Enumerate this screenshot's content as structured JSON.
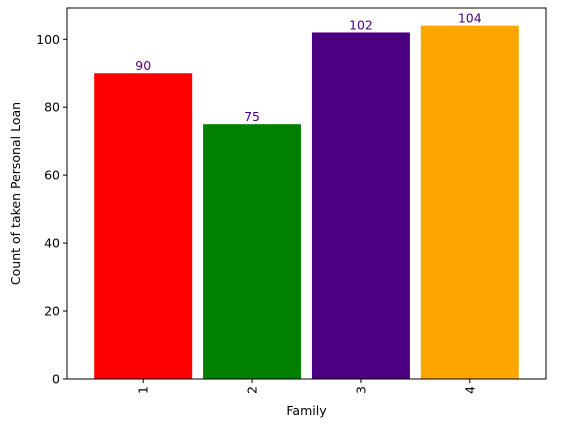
{
  "chart_data": {
    "type": "bar",
    "title": "",
    "xlabel": "Family",
    "ylabel": "Count of taken Personal Loan",
    "categories": [
      "1",
      "2",
      "3",
      "4"
    ],
    "values": [
      90,
      75,
      102,
      104
    ],
    "data_labels": [
      "90",
      "75",
      "102",
      "104"
    ],
    "bar_colors": [
      "#ff0000",
      "#008000",
      "#4b0082",
      "#ffa500"
    ],
    "data_label_color": "#4b0082",
    "ylim": [
      0,
      109.2
    ],
    "yticks": [
      0,
      20,
      40,
      60,
      80,
      100
    ],
    "ytick_labels": [
      "0",
      "20",
      "40",
      "60",
      "80",
      "100"
    ],
    "xtick_rotation": "vertical",
    "grid": false,
    "legend": "none"
  }
}
